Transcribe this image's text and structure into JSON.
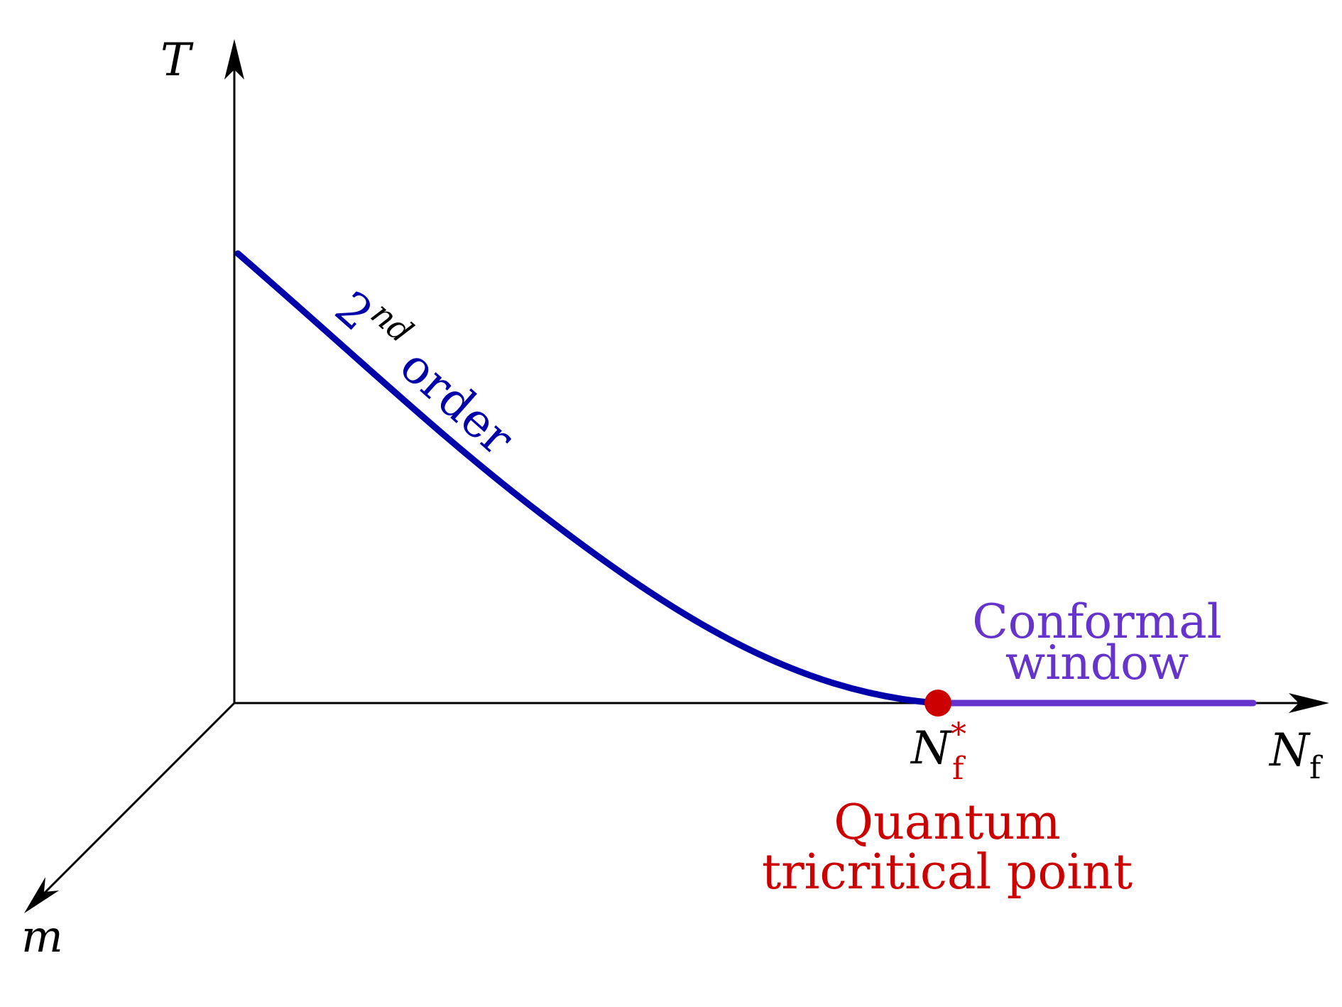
{
  "axes": {
    "t_label": "T",
    "m_label": "m",
    "nf_label_main": "N",
    "nf_label_sub": "f"
  },
  "curve": {
    "label_base": "2",
    "label_sup": "nd",
    "label_rest": " order",
    "color": "#0000aa"
  },
  "critical_point": {
    "label_main": "N",
    "label_sub": "f",
    "label_sup": "*",
    "caption_line1": "Quantum",
    "caption_line2": "tricritical point",
    "color": "#cc0000"
  },
  "conformal": {
    "line1": "Conformal",
    "line2": "window",
    "color": "#6633cc"
  }
}
